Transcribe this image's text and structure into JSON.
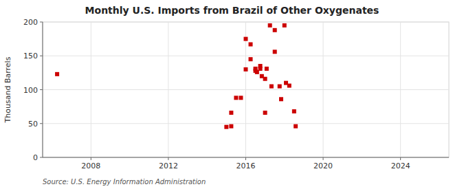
{
  "chart_data": {
    "type": "scatter",
    "title": "Monthly U.S. Imports from Brazil of Other Oxygenates",
    "ylabel": "Thousand Barrels",
    "source": "Source: U.S. Energy Information Administration",
    "color": "#cc0000",
    "marker": "square",
    "grid": true,
    "xlim": [
      2005.5,
      2026.5
    ],
    "ylim": [
      0,
      200
    ],
    "xticks": [
      2008,
      2012,
      2016,
      2020,
      2024
    ],
    "yticks": [
      0,
      50,
      100,
      150,
      200
    ],
    "x": [
      2006.25,
      2015.0,
      2015.25,
      2015.5,
      2015.75,
      2015.25,
      2016.0,
      2016.0,
      2016.25,
      2016.25,
      2016.5,
      2016.5,
      2016.58,
      2016.75,
      2016.75,
      2016.83,
      2017.0,
      2017.0,
      2017.08,
      2017.25,
      2017.33,
      2017.5,
      2017.5,
      2017.75,
      2017.83,
      2018.0,
      2018.08,
      2018.25,
      2018.5,
      2018.58
    ],
    "values": [
      123,
      45,
      46,
      88,
      88,
      66,
      175,
      130,
      167,
      145,
      131,
      128,
      126,
      135,
      131,
      120,
      116,
      66,
      131,
      195,
      105,
      188,
      156,
      105,
      86,
      195,
      110,
      106,
      68,
      46
    ]
  }
}
